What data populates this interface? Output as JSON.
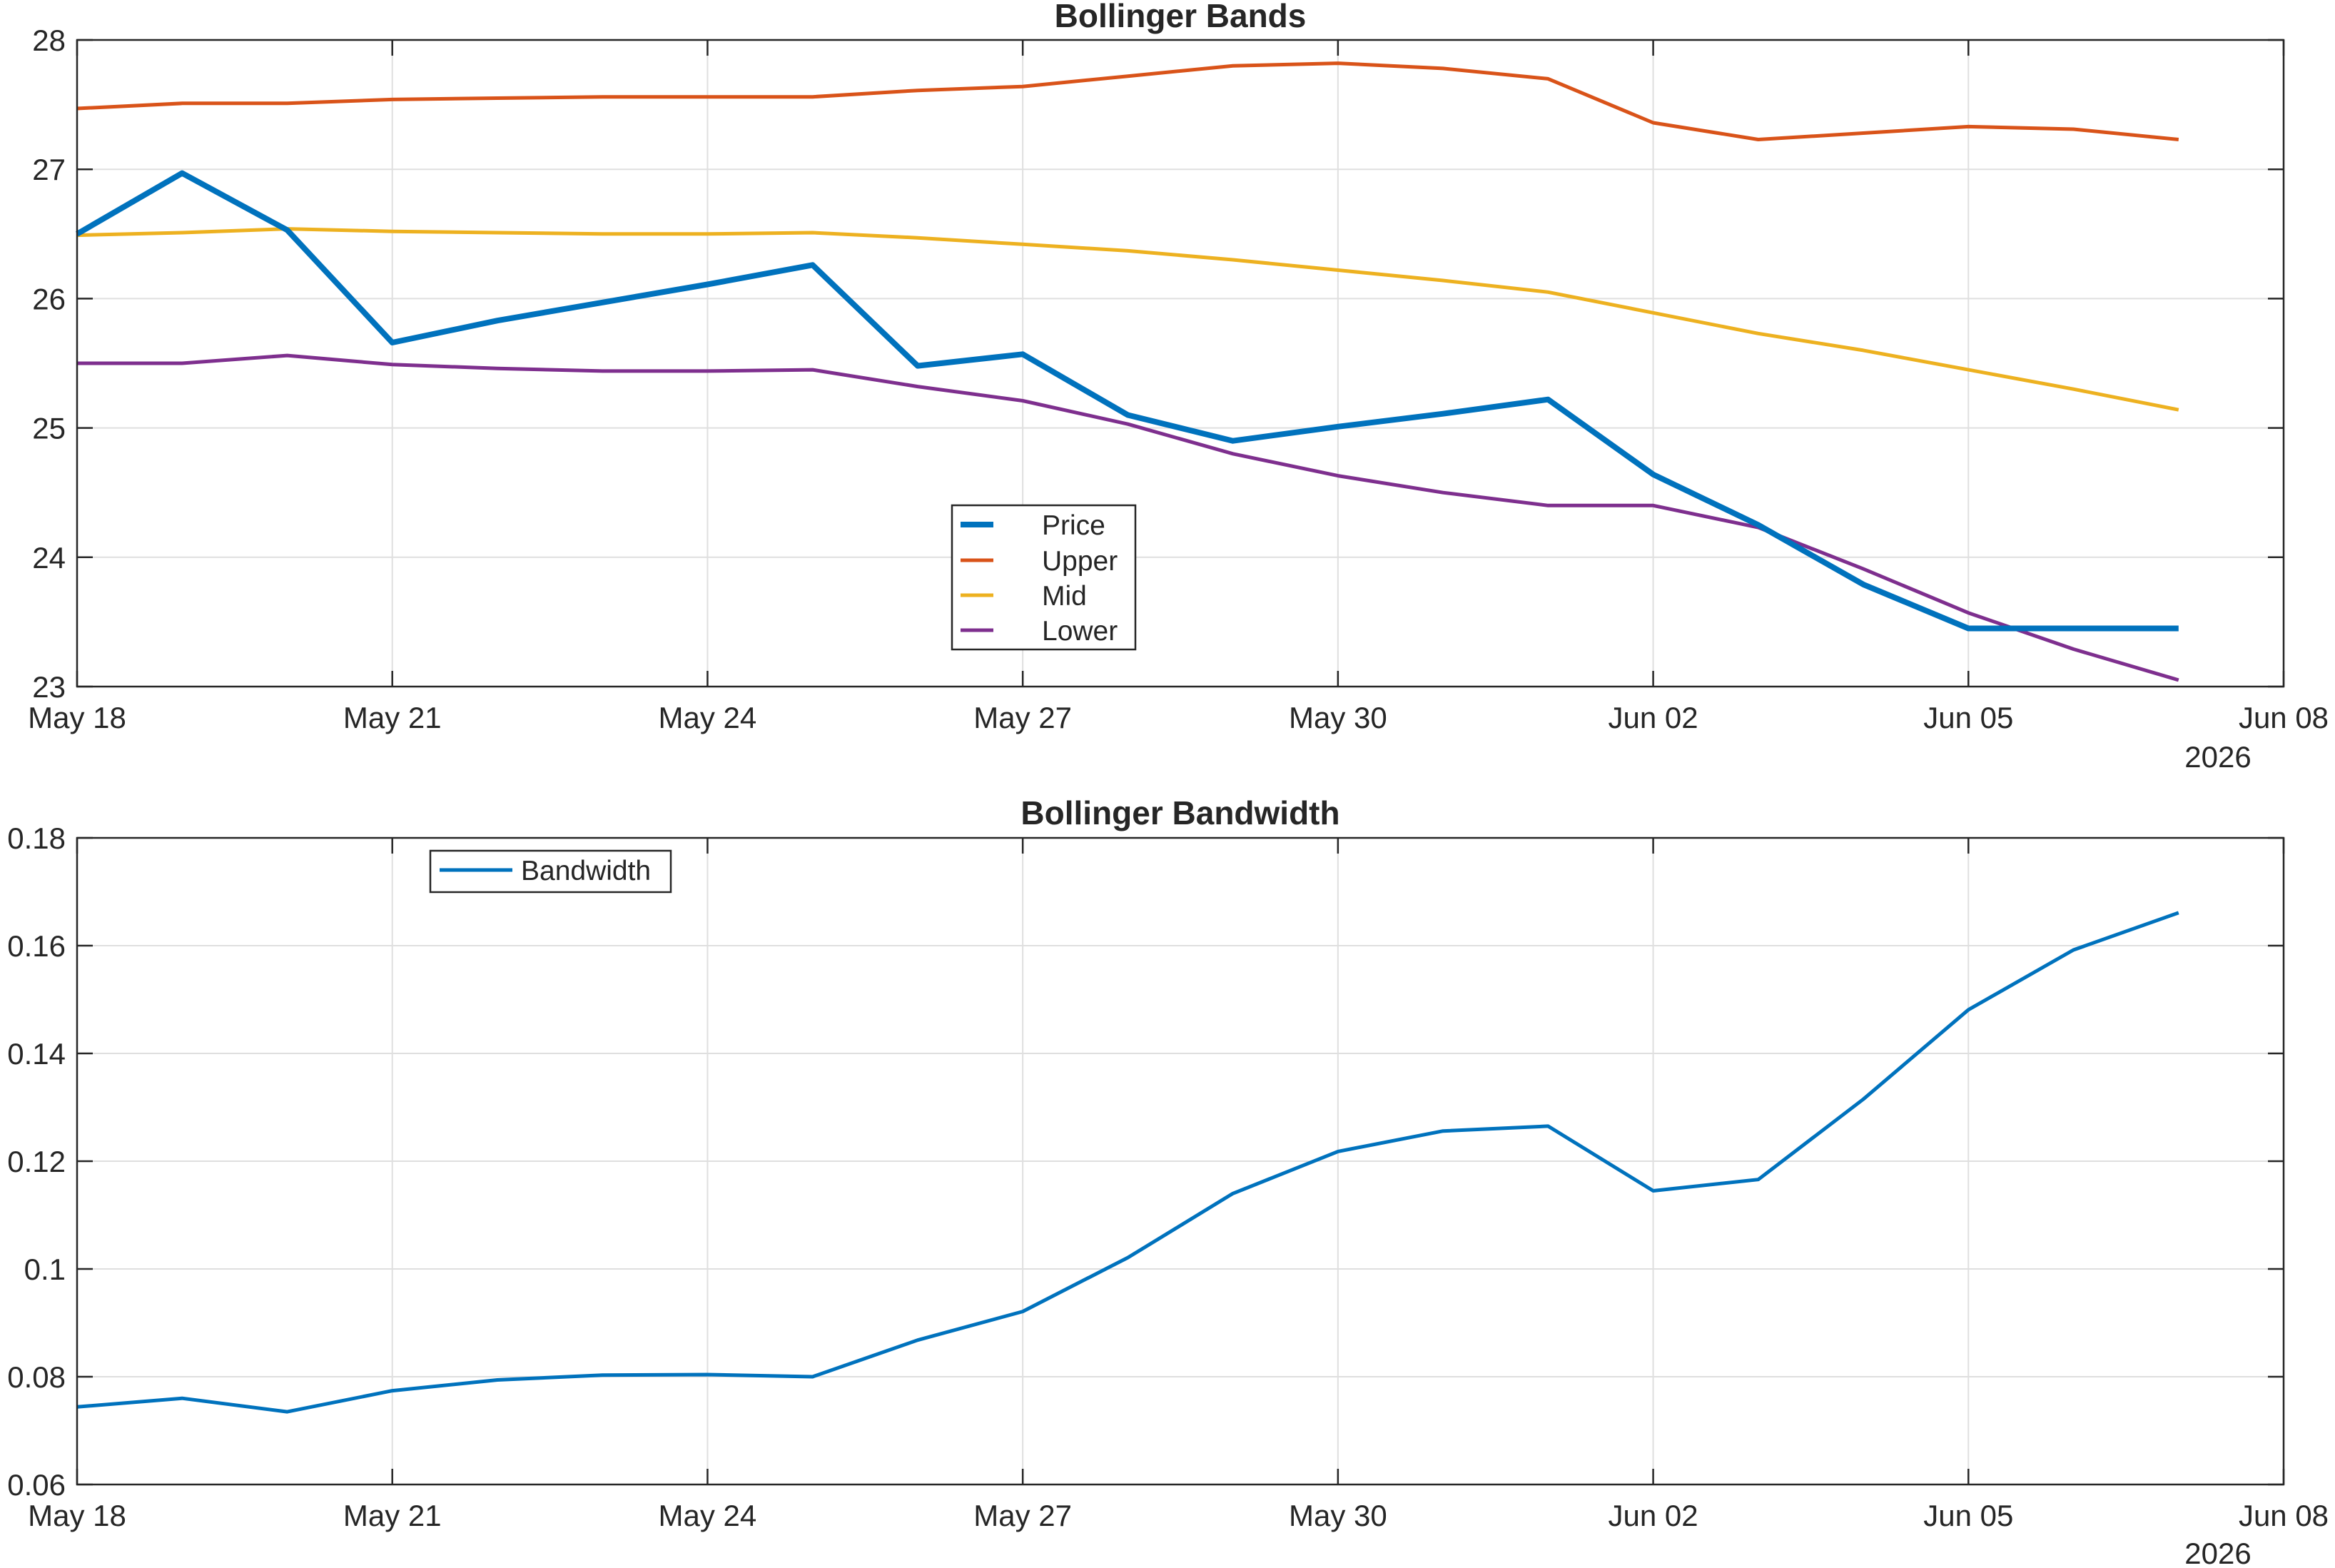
{
  "chart_data": [
    {
      "type": "line",
      "title": "Bollinger Bands",
      "xlabel": "",
      "ylabel": "",
      "x_range": [
        "2026-05-18",
        "2026-06-08"
      ],
      "ylim": [
        23,
        28
      ],
      "grid": true,
      "legend_position": "bottom-center",
      "x": [
        "2026-05-18",
        "2026-05-19",
        "2026-05-20",
        "2026-05-21",
        "2026-05-22",
        "2026-05-23",
        "2026-05-24",
        "2026-05-25",
        "2026-05-26",
        "2026-05-27",
        "2026-05-28",
        "2026-05-29",
        "2026-05-30",
        "2026-05-31",
        "2026-06-01",
        "2026-06-02",
        "2026-06-03",
        "2026-06-04",
        "2026-06-05",
        "2026-06-06",
        "2026-06-07"
      ],
      "x_ticks": [
        "May 18",
        "May 21",
        "May 24",
        "May 27",
        "May 30",
        "Jun 02",
        "Jun 05",
        "Jun 08"
      ],
      "x_tick_dates": [
        "2026-05-18",
        "2026-05-21",
        "2026-05-24",
        "2026-05-27",
        "2026-05-30",
        "2026-06-02",
        "2026-06-05",
        "2026-06-08"
      ],
      "x_secondary_label": "2026",
      "y_ticks": [
        "23",
        "24",
        "25",
        "26",
        "27",
        "28"
      ],
      "y_tick_values": [
        23,
        24,
        25,
        26,
        27,
        28
      ],
      "series": [
        {
          "name": "Price",
          "color": "#0072BD",
          "line_width": "thick",
          "values": [
            26.5,
            26.97,
            26.53,
            25.66,
            25.83,
            25.97,
            26.11,
            26.26,
            25.48,
            25.57,
            25.1,
            24.9,
            25.01,
            25.11,
            25.22,
            24.64,
            24.25,
            23.79,
            23.45,
            23.45,
            23.45
          ]
        },
        {
          "name": "Upper",
          "color": "#D95319",
          "line_width": "normal",
          "values": [
            27.47,
            27.51,
            27.51,
            27.54,
            27.55,
            27.56,
            27.56,
            27.56,
            27.61,
            27.64,
            27.72,
            27.8,
            27.82,
            27.78,
            27.7,
            27.36,
            27.23,
            27.28,
            27.33,
            27.31,
            27.23
          ]
        },
        {
          "name": "Mid",
          "color": "#EDB120",
          "line_width": "normal",
          "values": [
            26.49,
            26.51,
            26.54,
            26.52,
            26.51,
            26.5,
            26.5,
            26.51,
            26.47,
            26.42,
            26.37,
            26.3,
            26.22,
            26.14,
            26.05,
            25.89,
            25.73,
            25.6,
            25.45,
            25.3,
            25.14
          ]
        },
        {
          "name": "Lower",
          "color": "#7E2F8E",
          "line_width": "normal",
          "values": [
            25.5,
            25.5,
            25.56,
            25.49,
            25.46,
            25.44,
            25.44,
            25.45,
            25.32,
            25.21,
            25.03,
            24.8,
            24.63,
            24.5,
            24.4,
            24.4,
            24.23,
            23.91,
            23.57,
            23.29,
            23.05
          ]
        }
      ]
    },
    {
      "type": "line",
      "title": "Bollinger Bandwidth",
      "xlabel": "",
      "ylabel": "",
      "x_range": [
        "2026-05-18",
        "2026-06-08"
      ],
      "ylim": [
        0.06,
        0.18
      ],
      "grid": true,
      "legend_position": "top-left",
      "x": [
        "2026-05-18",
        "2026-05-19",
        "2026-05-20",
        "2026-05-21",
        "2026-05-22",
        "2026-05-23",
        "2026-05-24",
        "2026-05-25",
        "2026-05-26",
        "2026-05-27",
        "2026-05-28",
        "2026-05-29",
        "2026-05-30",
        "2026-05-31",
        "2026-06-01",
        "2026-06-02",
        "2026-06-03",
        "2026-06-04",
        "2026-06-05",
        "2026-06-06",
        "2026-06-07"
      ],
      "x_ticks": [
        "May 18",
        "May 21",
        "May 24",
        "May 27",
        "May 30",
        "Jun 02",
        "Jun 05",
        "Jun 08"
      ],
      "x_tick_dates": [
        "2026-05-18",
        "2026-05-21",
        "2026-05-24",
        "2026-05-27",
        "2026-05-30",
        "2026-06-02",
        "2026-06-05",
        "2026-06-08"
      ],
      "x_secondary_label": "2026",
      "y_ticks": [
        "0.06",
        "0.08",
        "0.1",
        "0.12",
        "0.14",
        "0.16",
        "0.18"
      ],
      "y_tick_values": [
        0.06,
        0.08,
        0.1,
        0.12,
        0.14,
        0.16,
        0.18
      ],
      "series": [
        {
          "name": "Bandwidth",
          "color": "#0072BD",
          "line_width": "normal",
          "values": [
            0.0744,
            0.076,
            0.0735,
            0.0774,
            0.0794,
            0.0803,
            0.0804,
            0.08,
            0.0868,
            0.0921,
            0.1021,
            0.114,
            0.1218,
            0.1256,
            0.1265,
            0.1145,
            0.1166,
            0.1315,
            0.1481,
            0.1592,
            0.1661
          ]
        }
      ]
    }
  ]
}
